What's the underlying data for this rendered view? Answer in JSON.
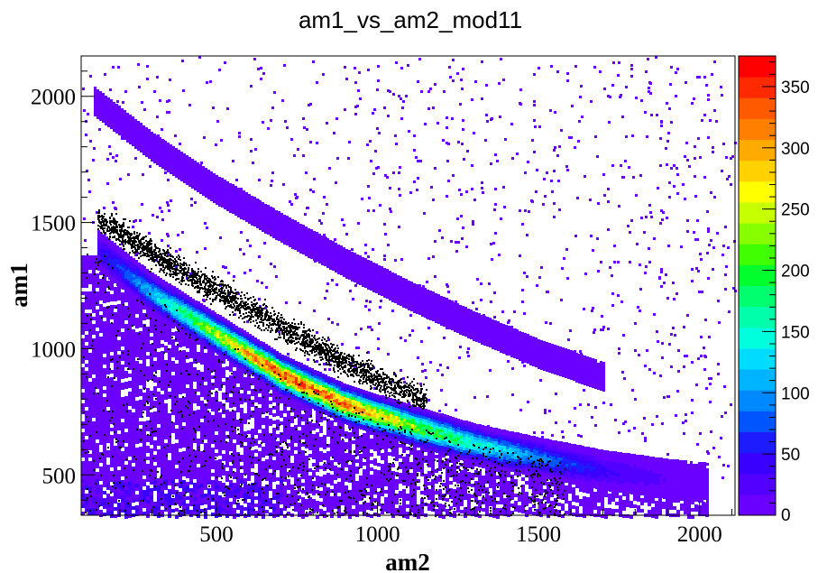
{
  "chart_data": {
    "type": "heatmap",
    "title": "am1_vs_am2_mod11",
    "xlabel": "am2",
    "ylabel": "am1",
    "xlim": [
      80,
      2110
    ],
    "ylim": [
      340,
      2160
    ],
    "x_ticks": [
      500,
      1000,
      1500,
      2000
    ],
    "y_ticks": [
      500,
      1000,
      1500,
      2000
    ],
    "z_range": [
      0,
      375
    ],
    "palette_ticks": [
      0,
      50,
      100,
      150,
      200,
      250,
      300,
      350
    ],
    "bands": [
      {
        "name": "upper band",
        "points": [
          [
            120,
            1980
          ],
          [
            300,
            1800
          ],
          [
            500,
            1630
          ],
          [
            700,
            1480
          ],
          [
            900,
            1340
          ],
          [
            1100,
            1210
          ],
          [
            1300,
            1090
          ],
          [
            1500,
            980
          ],
          [
            1700,
            890
          ]
        ],
        "counts": [
          5,
          10,
          8,
          6,
          6,
          5,
          5,
          4,
          3
        ]
      },
      {
        "name": "main band",
        "points": [
          [
            130,
            1390
          ],
          [
            300,
            1220
          ],
          [
            500,
            1060
          ],
          [
            700,
            900
          ],
          [
            900,
            780
          ],
          [
            1100,
            700
          ],
          [
            1300,
            625
          ],
          [
            1500,
            570
          ],
          [
            1700,
            520
          ],
          [
            1900,
            485
          ],
          [
            2020,
            470
          ]
        ],
        "counts": [
          40,
          120,
          240,
          340,
          320,
          230,
          150,
          90,
          40,
          15,
          8
        ]
      }
    ],
    "series": [
      {
        "name": "black markers",
        "points": [
          [
            130,
            1520
          ],
          [
            250,
            1420
          ],
          [
            400,
            1300
          ],
          [
            550,
            1200
          ],
          [
            700,
            1090
          ],
          [
            850,
            980
          ],
          [
            1000,
            880
          ],
          [
            1150,
            800
          ]
        ]
      }
    ],
    "colors": {
      "palette": [
        "#6a00ff",
        "#5200ff",
        "#3a00ff",
        "#1c1cff",
        "#0055ff",
        "#0088ff",
        "#00b4ff",
        "#00dcff",
        "#00ffdc",
        "#00ffaa",
        "#00ff6e",
        "#00ff2c",
        "#40ff00",
        "#88ff00",
        "#c8ff00",
        "#ffff00",
        "#ffd200",
        "#ffaa00",
        "#ff8000",
        "#ff5a00",
        "#ff2a00",
        "#ff0000"
      ],
      "axis": "#000000",
      "background": "#ffffff"
    }
  }
}
